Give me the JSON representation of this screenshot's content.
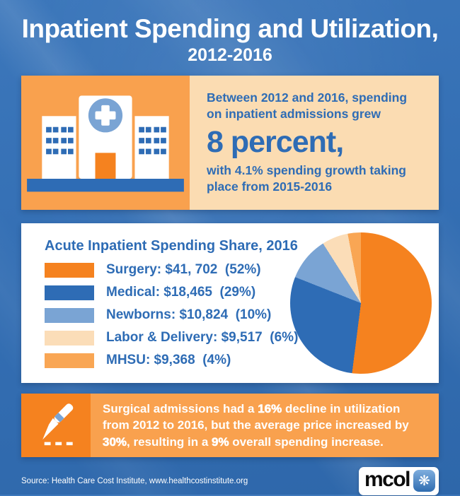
{
  "colors": {
    "bg_top": "#3C77BB",
    "bg_bottom": "#2E67AA",
    "panel_orange": "#F9A14E",
    "panel_peach": "#FBDCB2",
    "text_blue": "#2E6CB5",
    "orange_dark": "#F5821F",
    "orange_mid": "#F9A654",
    "blue_mid": "#2E6CB5",
    "blue_light": "#7AA4D4",
    "peach_light": "#FBDDB8"
  },
  "header": {
    "title": "Inpatient Spending and Utilization,",
    "subtitle": "2012-2016"
  },
  "spending_panel": {
    "icon": "hospital-icon",
    "intro": "Between 2012 and 2016, spending\non inpatient admissions grew",
    "highlight": "8 percent,",
    "detail": "with 4.1% spending growth taking\nplace from 2015-2016"
  },
  "legend": {
    "title": "Acute Inpatient Spending Share, 2016",
    "items": [
      {
        "name": "Surgery",
        "label": "Surgery: $41, 702  (52%)",
        "color": "#F5821F"
      },
      {
        "name": "Medical",
        "label": "Medical: $18,465  (29%)",
        "color": "#2E6CB5"
      },
      {
        "name": "Newborns",
        "label": "Newborns: $10,824  (10%)",
        "color": "#7AA4D4"
      },
      {
        "name": "Labor & Delivery",
        "label": "Labor & Delivery: $9,517  (6%)",
        "color": "#FBDDB8"
      },
      {
        "name": "MHSU",
        "label": "MHSU: $9,368  (4%)",
        "color": "#F9A654"
      }
    ]
  },
  "chart_data": {
    "type": "pie",
    "title": "Acute Inpatient Spending Share, 2016",
    "labels": [
      "Surgery",
      "Medical",
      "Newborns",
      "Labor & Delivery",
      "MHSU"
    ],
    "values_usd": [
      41702,
      18465,
      10824,
      9517,
      9368
    ],
    "percents": [
      52,
      29,
      10,
      6,
      4
    ],
    "colors": [
      "#F5821F",
      "#2E6CB5",
      "#7AA4D4",
      "#FBDDB8",
      "#F9A654"
    ],
    "start_angle_deg": 0,
    "direction": "clockwise",
    "legend_position": "left"
  },
  "fact_panel": {
    "icon": "scalpel-icon",
    "segments": [
      {
        "text": "Surgical admissions had a ",
        "bold": false
      },
      {
        "text": "16%",
        "bold": true
      },
      {
        "text": " decline in utilization from 2012 to 2016, but the average price increased by ",
        "bold": false
      },
      {
        "text": "30%",
        "bold": true
      },
      {
        "text": ", resulting in a ",
        "bold": false
      },
      {
        "text": "9%",
        "bold": true
      },
      {
        "text": " overall spending increase.",
        "bold": false
      }
    ]
  },
  "footer": {
    "source": "Source: Health Care Cost Institute, www.healthcostinstitute.org",
    "logo_text": "mcol",
    "logo_icon": "❋"
  }
}
